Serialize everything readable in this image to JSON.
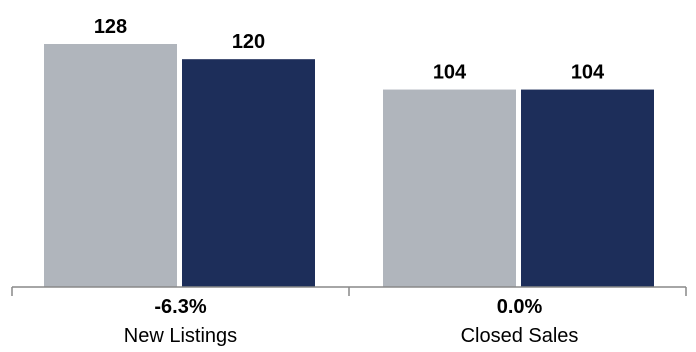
{
  "chart_data": {
    "type": "bar",
    "categories": [
      "New Listings",
      "Closed Sales"
    ],
    "change_labels": [
      "-6.3%",
      "0.0%"
    ],
    "series": [
      {
        "values": [
          128,
          120
        ],
        "color": "#b0b5bc"
      },
      {
        "values": [
          104,
          104
        ],
        "color": "#1d2e5a"
      }
    ],
    "groups": [
      {
        "values": [
          128,
          120
        ],
        "colors": [
          "#b0b5bc",
          "#1d2e5a"
        ]
      },
      {
        "values": [
          104,
          104
        ],
        "colors": [
          "#b0b5bc",
          "#1d2e5a"
        ]
      }
    ],
    "ylim": [
      0,
      128
    ],
    "grid": false,
    "axis_color": "#888888"
  }
}
